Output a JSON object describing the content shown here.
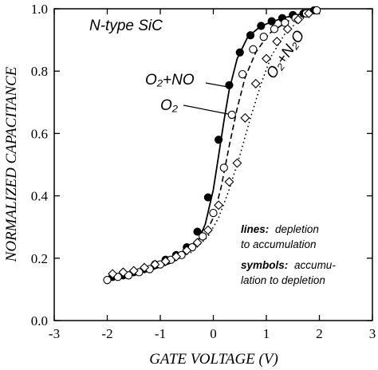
{
  "chart_data": {
    "type": "scatter",
    "xlabel": "GATE VOLTAGE (V)",
    "ylabel": "NORMALIZED CAPACITANCE",
    "xlim": [
      -3,
      3
    ],
    "ylim": [
      0,
      1
    ],
    "x_ticks": [
      -3,
      -2,
      -1,
      0,
      1,
      2,
      3
    ],
    "y_ticks": [
      0,
      0.2,
      0.4,
      0.6,
      0.8,
      1.0
    ],
    "x_tick_labels": [
      "-3",
      "-2",
      "-1",
      "0",
      "1",
      "2",
      "3"
    ],
    "y_tick_labels": [
      "0.0",
      "0.2",
      "0.4",
      "0.6",
      "0.8",
      "1.0"
    ],
    "grid": false,
    "annotations": {
      "material": "N-type SiC",
      "label_o2no": "O₂+NO",
      "label_o2": "O₂",
      "label_o2n2o": "O₂+N₂O",
      "legend_lines_title": "lines:",
      "legend_lines_text": "depletion",
      "legend_lines_text2": "to accumulation",
      "legend_symbols_title": "symbols:",
      "legend_symbols_text": "accumu-",
      "legend_symbols_text2": "lation to depletion"
    },
    "series": [
      {
        "name": "O₂+NO",
        "marker": "filled-circle",
        "line_style": "solid",
        "points": [
          [
            -1.9,
            0.14
          ],
          [
            -1.7,
            0.145
          ],
          [
            -1.5,
            0.155
          ],
          [
            -1.3,
            0.165
          ],
          [
            -1.1,
            0.18
          ],
          [
            -0.9,
            0.195
          ],
          [
            -0.7,
            0.21
          ],
          [
            -0.5,
            0.235
          ],
          [
            -0.3,
            0.285
          ],
          [
            -0.1,
            0.395
          ],
          [
            0.1,
            0.58
          ],
          [
            0.3,
            0.755
          ],
          [
            0.5,
            0.86
          ],
          [
            0.7,
            0.915
          ],
          [
            0.9,
            0.945
          ],
          [
            1.1,
            0.96
          ],
          [
            1.3,
            0.97
          ],
          [
            1.5,
            0.98
          ],
          [
            1.7,
            0.985
          ],
          [
            1.9,
            0.995
          ]
        ],
        "line": [
          [
            -2.0,
            0.135
          ],
          [
            -1.6,
            0.145
          ],
          [
            -1.2,
            0.16
          ],
          [
            -0.8,
            0.185
          ],
          [
            -0.5,
            0.215
          ],
          [
            -0.3,
            0.25
          ],
          [
            -0.15,
            0.31
          ],
          [
            0.0,
            0.42
          ],
          [
            0.1,
            0.53
          ],
          [
            0.2,
            0.64
          ],
          [
            0.3,
            0.74
          ],
          [
            0.45,
            0.84
          ],
          [
            0.65,
            0.91
          ],
          [
            0.9,
            0.945
          ],
          [
            1.3,
            0.97
          ],
          [
            1.7,
            0.985
          ],
          [
            2.0,
            0.995
          ]
        ]
      },
      {
        "name": "O₂",
        "marker": "open-circle",
        "line_style": "dashed",
        "points": [
          [
            -2.0,
            0.13
          ],
          [
            -1.8,
            0.14
          ],
          [
            -1.6,
            0.145
          ],
          [
            -1.4,
            0.155
          ],
          [
            -1.2,
            0.165
          ],
          [
            -1.0,
            0.18
          ],
          [
            -0.8,
            0.195
          ],
          [
            -0.6,
            0.21
          ],
          [
            -0.4,
            0.235
          ],
          [
            -0.2,
            0.27
          ],
          [
            0.0,
            0.345
          ],
          [
            0.2,
            0.49
          ],
          [
            0.35,
            0.66
          ],
          [
            0.55,
            0.79
          ],
          [
            0.75,
            0.87
          ],
          [
            0.95,
            0.91
          ],
          [
            1.15,
            0.935
          ],
          [
            1.35,
            0.955
          ],
          [
            1.55,
            0.97
          ],
          [
            1.75,
            0.985
          ],
          [
            1.95,
            0.995
          ]
        ],
        "line": [
          [
            -2.0,
            0.13
          ],
          [
            -1.6,
            0.145
          ],
          [
            -1.2,
            0.165
          ],
          [
            -0.8,
            0.19
          ],
          [
            -0.5,
            0.215
          ],
          [
            -0.2,
            0.26
          ],
          [
            0.0,
            0.33
          ],
          [
            0.15,
            0.43
          ],
          [
            0.3,
            0.56
          ],
          [
            0.45,
            0.68
          ],
          [
            0.6,
            0.78
          ],
          [
            0.8,
            0.86
          ],
          [
            1.05,
            0.92
          ],
          [
            1.4,
            0.96
          ],
          [
            1.8,
            0.985
          ],
          [
            2.0,
            0.995
          ]
        ]
      },
      {
        "name": "O₂+N₂O",
        "marker": "open-diamond",
        "line_style": "dotted",
        "points": [
          [
            -1.9,
            0.15
          ],
          [
            -1.7,
            0.155
          ],
          [
            -1.5,
            0.16
          ],
          [
            -1.3,
            0.17
          ],
          [
            -1.1,
            0.18
          ],
          [
            -0.9,
            0.19
          ],
          [
            -0.7,
            0.205
          ],
          [
            -0.5,
            0.225
          ],
          [
            -0.3,
            0.25
          ],
          [
            -0.1,
            0.29
          ],
          [
            0.1,
            0.37
          ],
          [
            0.3,
            0.445
          ],
          [
            0.45,
            0.505
          ],
          [
            0.6,
            0.65
          ],
          [
            0.8,
            0.76
          ],
          [
            1.0,
            0.84
          ],
          [
            1.2,
            0.895
          ],
          [
            1.4,
            0.935
          ],
          [
            1.6,
            0.965
          ],
          [
            1.8,
            0.985
          ]
        ],
        "line": [
          [
            -2.0,
            0.14
          ],
          [
            -1.6,
            0.15
          ],
          [
            -1.2,
            0.165
          ],
          [
            -0.8,
            0.19
          ],
          [
            -0.4,
            0.22
          ],
          [
            -0.1,
            0.27
          ],
          [
            0.1,
            0.33
          ],
          [
            0.3,
            0.42
          ],
          [
            0.5,
            0.53
          ],
          [
            0.7,
            0.65
          ],
          [
            0.9,
            0.76
          ],
          [
            1.1,
            0.85
          ],
          [
            1.35,
            0.92
          ],
          [
            1.6,
            0.96
          ],
          [
            1.85,
            0.985
          ],
          [
            2.0,
            0.995
          ]
        ]
      }
    ]
  }
}
